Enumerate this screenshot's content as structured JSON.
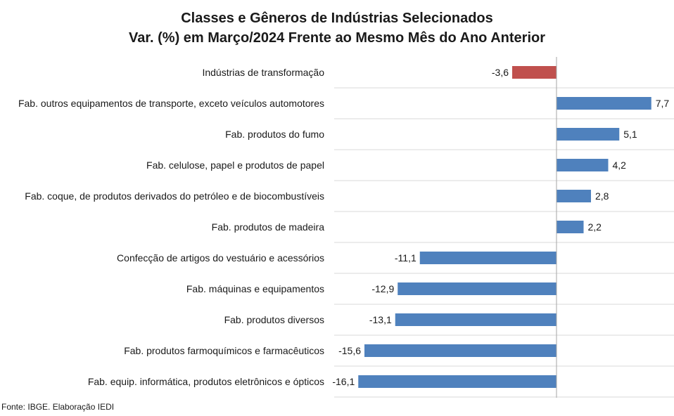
{
  "chart_data": {
    "type": "bar",
    "orientation": "horizontal",
    "title": "Classes e Gêneros de Indústrias Selecionados",
    "subtitle": "Var. (%) em Março/2024 Frente ao Mesmo Mês do Ano Anterior",
    "categories": [
      "Indústrias de transformação",
      "Fab. outros equipamentos de transporte, exceto veículos automotores",
      "Fab. produtos do fumo",
      "Fab. celulose, papel e produtos de papel",
      "Fab. coque, de produtos derivados do petróleo e de biocombustíveis",
      "Fab. produtos de madeira",
      "Confecção de artigos do vestuário e acessórios",
      "Fab. máquinas e equipamentos",
      "Fab. produtos diversos",
      "Fab. produtos farmoquímicos e farmacêuticos",
      "Fab. equip. informática, produtos eletrônicos e ópticos"
    ],
    "values": [
      -3.6,
      7.7,
      5.1,
      4.2,
      2.8,
      2.2,
      -11.1,
      -12.9,
      -13.1,
      -15.6,
      -16.1
    ],
    "labels": [
      "-3,6",
      "7,7",
      "5,1",
      "4,2",
      "2,8",
      "2,2",
      "-11,1",
      "-12,9",
      "-13,1",
      "-15,6",
      "-16,1"
    ],
    "highlight_color": "#c0504d",
    "bar_color": "#4f81bd",
    "highlight_index": 0,
    "grid": "horizontal separators",
    "source": "Fonte: IBGE. Elaboração IEDI"
  }
}
